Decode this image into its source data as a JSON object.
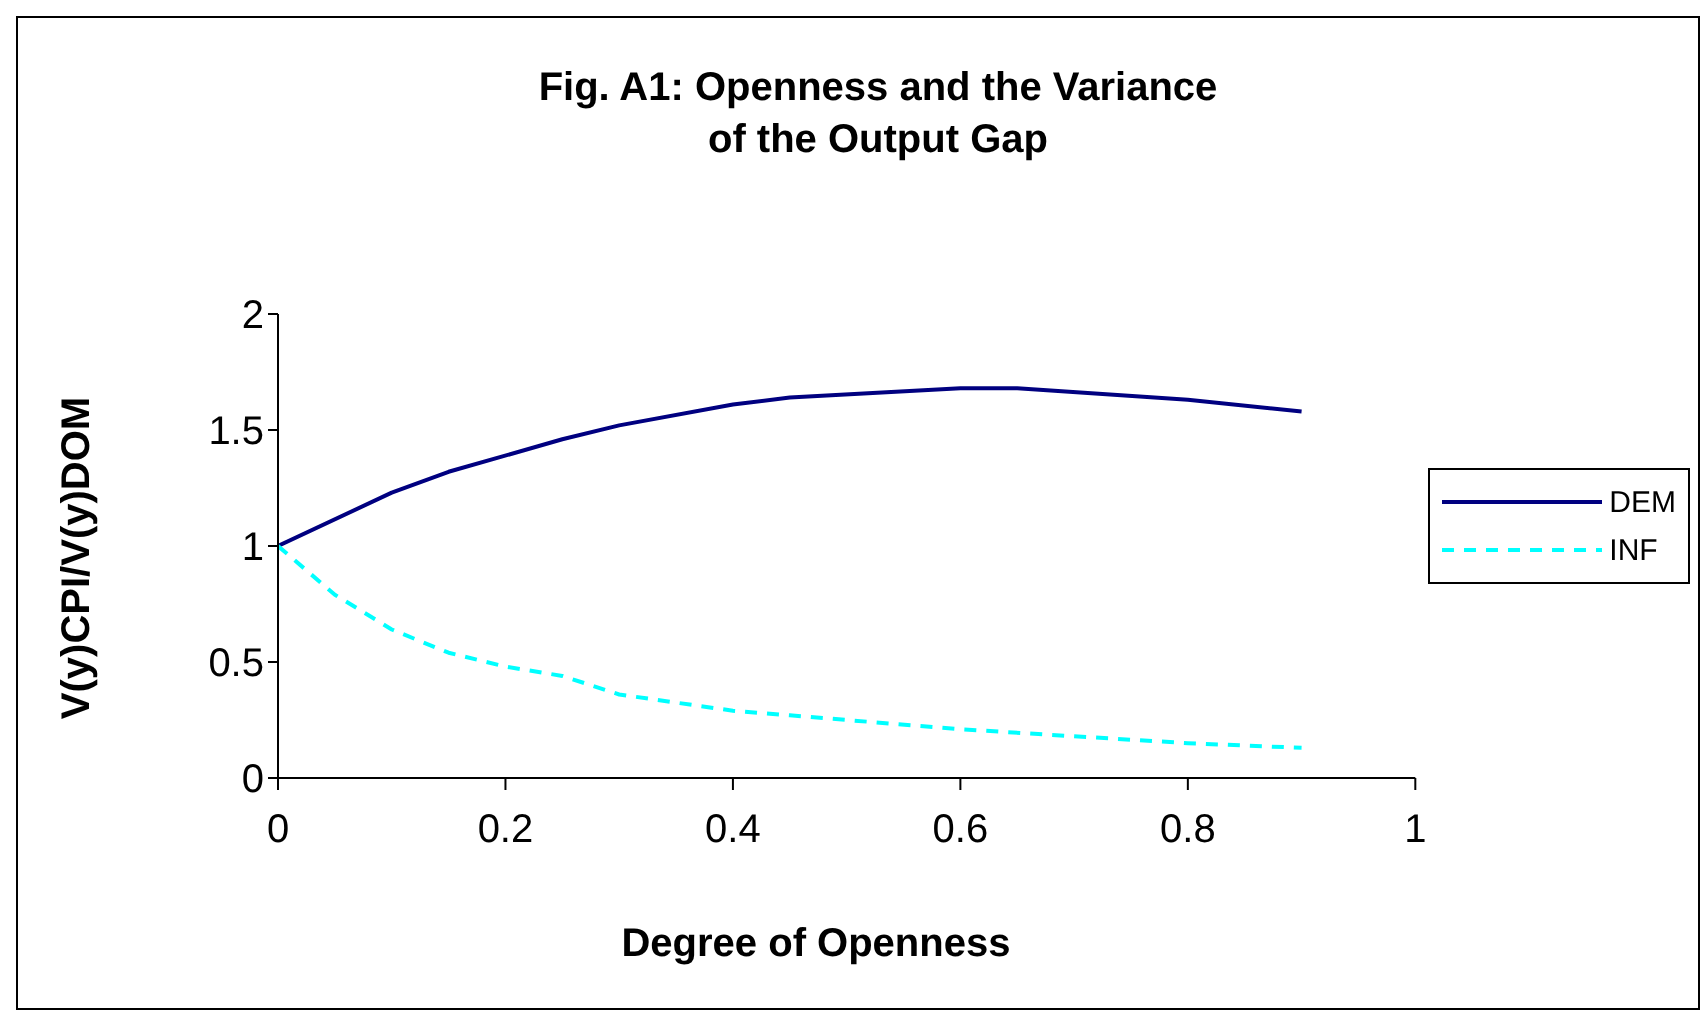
{
  "chart_data": {
    "type": "line",
    "title": "Fig. A1: Openness and the Variance of the Output Gap",
    "xlabel": "Degree of Openness",
    "ylabel": "V(y)CPI/V(y)DOM",
    "xlim": [
      0,
      1
    ],
    "xticks": [
      0,
      0.2,
      0.4,
      0.6,
      0.8,
      1
    ],
    "ylim": [
      0,
      2
    ],
    "yticks": [
      0,
      0.5,
      1,
      1.5,
      2
    ],
    "grid": false,
    "legend": "right",
    "marker": "none",
    "series": [
      {
        "name": "DEM",
        "color": "#000080",
        "line_style": "solid",
        "x": [
          0,
          0.1,
          0.15,
          0.25,
          0.3,
          0.4,
          0.45,
          0.6,
          0.65,
          0.8,
          0.9
        ],
        "values": [
          1,
          1.23,
          1.32,
          1.46,
          1.52,
          1.61,
          1.64,
          1.68,
          1.68,
          1.63,
          1.58
        ]
      },
      {
        "name": "INF",
        "color": "#00ffff",
        "line_style": "dashed",
        "x": [
          0,
          0.05,
          0.1,
          0.15,
          0.2,
          0.25,
          0.3,
          0.4,
          0.45,
          0.6,
          0.7,
          0.8,
          0.9
        ],
        "values": [
          1,
          0.79,
          0.64,
          0.54,
          0.48,
          0.44,
          0.36,
          0.29,
          0.27,
          0.21,
          0.18,
          0.15,
          0.13
        ]
      }
    ]
  }
}
